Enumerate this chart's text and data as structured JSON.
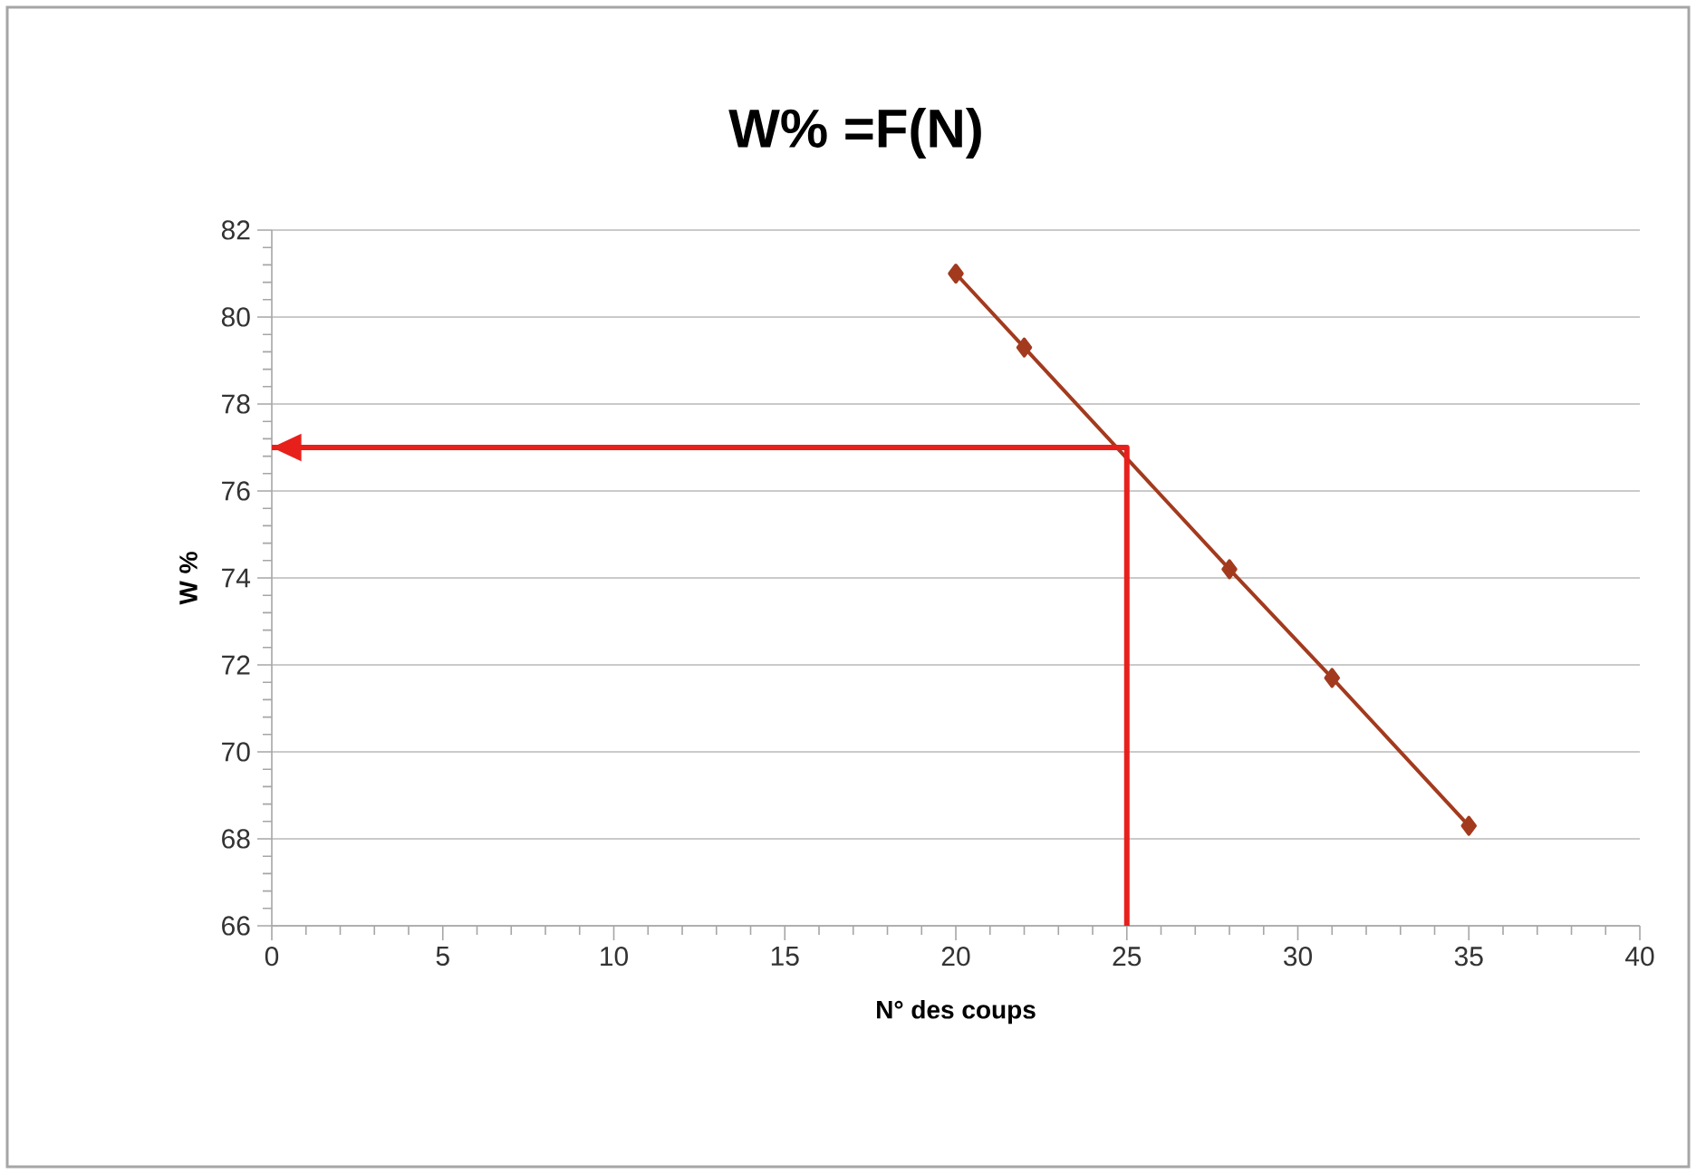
{
  "chart_data": {
    "type": "line",
    "title": "W% =F(N)",
    "xlabel": "N° des coups",
    "ylabel": "W %",
    "xlim": [
      0,
      40
    ],
    "xticks": [
      0,
      5,
      10,
      15,
      20,
      25,
      30,
      35,
      40
    ],
    "ylim": [
      66,
      82
    ],
    "yticks": [
      66,
      68,
      70,
      72,
      74,
      76,
      78,
      80,
      82
    ],
    "grid": "y",
    "marker": "diamond",
    "line_style": "solid",
    "series": [
      {
        "color": "#a33a1e",
        "x": [
          20,
          22,
          28,
          31,
          35
        ],
        "values": [
          81,
          79.3,
          74.2,
          71.7,
          68.3
        ]
      },
      {
        "color": "#e8201c",
        "marker": "none",
        "x": [
          25,
          25,
          0
        ],
        "values": [
          66,
          77,
          77
        ]
      }
    ]
  }
}
